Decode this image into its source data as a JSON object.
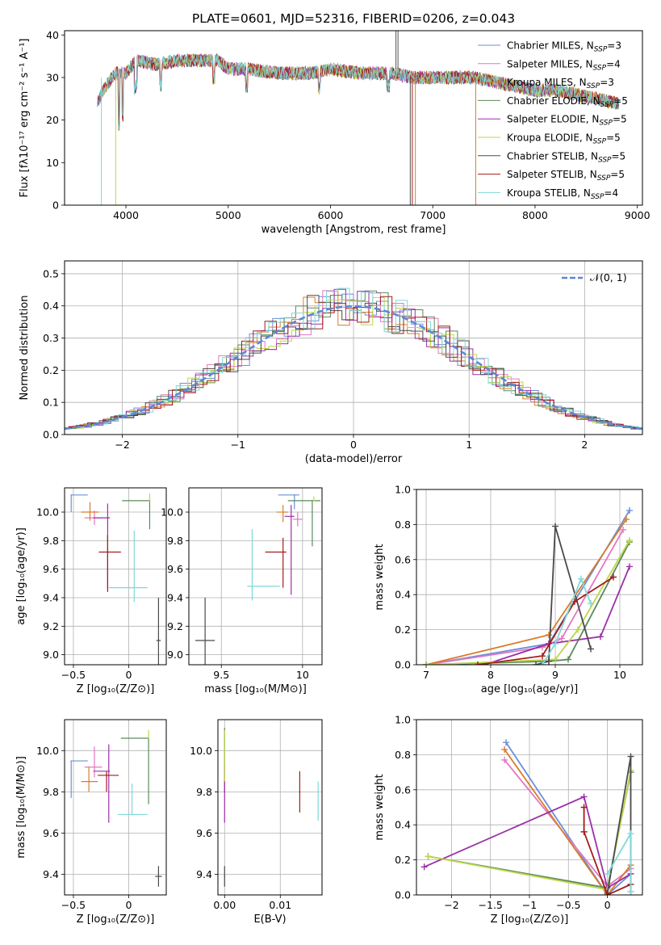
{
  "figure_title": "PLATE=0601, MJD=52316, FIBERID=0206, z=0.043",
  "colors": [
    "#6b8fd8",
    "#e377c2",
    "#d97c2a",
    "#5a8a5a",
    "#9b30a8",
    "#bcd64a",
    "#4a4a4a",
    "#a51a1a",
    "#7fd8d8"
  ],
  "panels_text": {
    "spectrum": {
      "xlabel": "wavelength [Angstrom, rest frame]",
      "ylabel": "Flux [fλ10⁻¹⁷ erg cm⁻² s⁻¹ A⁻¹]"
    },
    "hist": {
      "xlabel": "(data-model)/error",
      "ylabel": "Normed distribution",
      "legend": "𝒩(0, 1)"
    },
    "age_z": {
      "xlabel": "Z [log₁₀(Z/Z⊙)]",
      "ylabel": "age  [log₁₀(age/yr)]"
    },
    "age_mass": {
      "xlabel": "mass [log₁₀(M/M⊙)]"
    },
    "mw_age": {
      "xlabel": "age  [log₁₀(age/yr)]",
      "ylabel": "mass weight"
    },
    "mass_z": {
      "xlabel": "Z [log₁₀(Z/Z⊙)]",
      "ylabel": "mass [log₁₀(M/M⊙)]"
    },
    "mass_ebv": {
      "xlabel": "E(B-V)"
    },
    "mw_z": {
      "xlabel": "Z [log₁₀(Z/Z⊙)]",
      "ylabel": "mass weight"
    }
  },
  "chart_data": [
    {
      "id": "spectrum",
      "type": "line",
      "xlim": [
        3400,
        9050
      ],
      "ylim": [
        0,
        41
      ],
      "xticks": [
        4000,
        5000,
        6000,
        7000,
        8000,
        9000
      ],
      "yticks": [
        0,
        10,
        20,
        30,
        40
      ],
      "grid": false,
      "legend_placement": "top-right",
      "series": [
        {
          "name": "Chabrier MILES, N_SSP=3"
        },
        {
          "name": "Salpeter MILES, N_SSP=4"
        },
        {
          "name": "Kroupa MILES, N_SSP=3"
        },
        {
          "name": "Chabrier ELODIE, N_SSP=5"
        },
        {
          "name": "Salpeter ELODIE, N_SSP=5"
        },
        {
          "name": "Kroupa ELODIE, N_SSP=5"
        },
        {
          "name": "Chabrier STELIB, N_SSP=5"
        },
        {
          "name": "Salpeter STELIB, N_SSP=5"
        },
        {
          "name": "Kroupa STELIB, N_SSP=4"
        }
      ],
      "continuum": {
        "x": [
          3720,
          3800,
          3900,
          4000,
          4100,
          4300,
          4500,
          4700,
          4900,
          5000,
          5200,
          5500,
          5800,
          6000,
          6300,
          6600,
          6800,
          7000,
          7200,
          7400,
          7600,
          7800,
          8000,
          8200,
          8400,
          8600,
          8800
        ],
        "y": [
          24,
          28,
          31,
          31,
          34,
          33,
          34,
          34,
          34,
          32,
          32,
          31,
          31,
          32,
          31,
          31,
          30,
          30,
          30,
          30,
          29,
          28,
          27,
          27,
          26,
          25,
          24
        ]
      }
    },
    {
      "id": "hist",
      "type": "bar",
      "xlim": [
        -2.5,
        2.5
      ],
      "ylim": [
        0,
        0.54
      ],
      "xticks": [
        -2,
        -1,
        0,
        1,
        2
      ],
      "yticks": [
        0,
        0.1,
        0.2,
        0.3,
        0.4,
        0.5
      ],
      "grid": true,
      "legend_placement": "top-right",
      "bin_width": 0.1,
      "gaussian": {
        "mean": 0,
        "sigma": 1
      }
    },
    {
      "id": "age_z",
      "type": "scatter",
      "xlim": [
        -0.58,
        0.34
      ],
      "ylim": [
        8.93,
        10.17
      ],
      "xticks": [
        -0.5,
        0.0
      ],
      "yticks": [
        9.0,
        9.2,
        9.4,
        9.6,
        9.8,
        10.0
      ],
      "grid": true,
      "points": [
        {
          "x": -0.52,
          "y": 10.12,
          "xerr": [
            0,
            0.15
          ],
          "yerr": [
            0.12,
            0
          ]
        },
        {
          "x": -0.31,
          "y": 9.96,
          "xerr": [
            0.09,
            0.08
          ],
          "yerr": [
            0.05,
            0.05
          ]
        },
        {
          "x": -0.35,
          "y": 10.0,
          "xerr": [
            0.08,
            0.08
          ],
          "yerr": [
            0.06,
            0.07
          ]
        },
        {
          "x": 0.19,
          "y": 10.08,
          "xerr": [
            0.25,
            0
          ],
          "yerr": [
            0.2,
            0
          ]
        },
        {
          "x": -0.19,
          "y": 9.96,
          "xerr": [
            0.13,
            0.02
          ],
          "yerr": [
            0.5,
            0.1
          ]
        },
        {
          "x": 0.19,
          "y": 10.08,
          "xerr": [
            0,
            0
          ],
          "yerr": [
            0,
            0.05
          ]
        },
        {
          "x": 0.27,
          "y": 9.1,
          "xerr": [
            0.02,
            0.02
          ],
          "yerr": [
            0.17,
            0.3
          ]
        },
        {
          "x": -0.19,
          "y": 9.72,
          "xerr": [
            0.08,
            0.12
          ],
          "yerr": [
            0.28,
            0.12
          ]
        },
        {
          "x": 0.05,
          "y": 9.47,
          "xerr": [
            0.23,
            0.12
          ],
          "yerr": [
            0.1,
            0.4
          ]
        }
      ]
    },
    {
      "id": "age_mass",
      "type": "scatter",
      "xlim": [
        9.3,
        10.12
      ],
      "ylim": [
        8.93,
        10.17
      ],
      "xticks": [
        9.5,
        10.0
      ],
      "yticks": [
        9.0,
        9.2,
        9.4,
        9.6,
        9.8,
        10.0
      ],
      "grid": true,
      "points": [
        {
          "x": 9.95,
          "y": 10.12,
          "xerr": [
            0.1,
            0.03
          ],
          "yerr": [
            0.1,
            0
          ]
        },
        {
          "x": 9.97,
          "y": 9.95,
          "xerr": [
            0.03,
            0.03
          ],
          "yerr": [
            0.05,
            0.05
          ]
        },
        {
          "x": 9.88,
          "y": 10.0,
          "xerr": [
            0.04,
            0.03
          ],
          "yerr": [
            0.07,
            0.05
          ]
        },
        {
          "x": 10.06,
          "y": 10.08,
          "xerr": [
            0.15,
            0.05
          ],
          "yerr": [
            0.32,
            0
          ]
        },
        {
          "x": 9.93,
          "y": 9.97,
          "xerr": [
            0.04,
            0.02
          ],
          "yerr": [
            0.55,
            0.08
          ]
        },
        {
          "x": 10.07,
          "y": 10.08,
          "xerr": [
            0,
            0
          ],
          "yerr": [
            0,
            0.03
          ]
        },
        {
          "x": 9.4,
          "y": 9.1,
          "xerr": [
            0.06,
            0.06
          ],
          "yerr": [
            0.17,
            0.3
          ]
        },
        {
          "x": 9.88,
          "y": 9.72,
          "xerr": [
            0.11,
            0.02
          ],
          "yerr": [
            0.25,
            0.1
          ]
        },
        {
          "x": 9.69,
          "y": 9.48,
          "xerr": [
            0.03,
            0.17
          ],
          "yerr": [
            0.1,
            0.4
          ]
        }
      ]
    },
    {
      "id": "mw_age",
      "type": "line",
      "xlim": [
        6.85,
        10.35
      ],
      "ylim": [
        0,
        1.0
      ],
      "xticks": [
        7,
        8,
        9,
        10
      ],
      "yticks": [
        0,
        0.2,
        0.4,
        0.6,
        0.8,
        1.0
      ],
      "grid": true,
      "series": [
        {
          "x": [
            7.0,
            8.9,
            10.15
          ],
          "y": [
            0.0,
            0.12,
            0.88
          ]
        },
        {
          "x": [
            7.0,
            8.8,
            9.1,
            10.05
          ],
          "y": [
            0.0,
            0.1,
            0.15,
            0.77
          ]
        },
        {
          "x": [
            7.0,
            8.9,
            10.1
          ],
          "y": [
            0.0,
            0.17,
            0.83
          ]
        },
        {
          "x": [
            7.0,
            8.9,
            9.2,
            10.15
          ],
          "y": [
            0.0,
            0.02,
            0.03,
            0.7
          ]
        },
        {
          "x": [
            7.9,
            8.9,
            9.7,
            10.15
          ],
          "y": [
            0.0,
            0.12,
            0.16,
            0.56
          ]
        },
        {
          "x": [
            7.0,
            9.0,
            9.35,
            10.15
          ],
          "y": [
            0.0,
            0.03,
            0.2,
            0.71
          ]
        },
        {
          "x": [
            8.7,
            8.9,
            9.0,
            9.55
          ],
          "y": [
            0.0,
            0.02,
            0.79,
            0.09
          ]
        },
        {
          "x": [
            7.8,
            8.8,
            9.3,
            9.9
          ],
          "y": [
            0.0,
            0.05,
            0.36,
            0.5
          ]
        },
        {
          "x": [
            8.8,
            9.0,
            9.4,
            9.55
          ],
          "y": [
            0.0,
            0.12,
            0.49,
            0.35
          ]
        }
      ]
    },
    {
      "id": "mass_z",
      "type": "scatter",
      "xlim": [
        -0.58,
        0.34
      ],
      "ylim": [
        9.3,
        10.15
      ],
      "xticks": [
        -0.5,
        0.0
      ],
      "yticks": [
        9.4,
        9.6,
        9.8,
        10.0
      ],
      "grid": true,
      "points": [
        {
          "x": -0.52,
          "y": 9.95,
          "xerr": [
            0,
            0.15
          ],
          "yerr": [
            0.18,
            0
          ]
        },
        {
          "x": -0.31,
          "y": 9.92,
          "xerr": [
            0.09,
            0.07
          ],
          "yerr": [
            0.05,
            0.1
          ]
        },
        {
          "x": -0.36,
          "y": 9.85,
          "xerr": [
            0.07,
            0.08
          ],
          "yerr": [
            0.05,
            0.07
          ]
        },
        {
          "x": 0.18,
          "y": 10.06,
          "xerr": [
            0.25,
            0
          ],
          "yerr": [
            0.32,
            0
          ]
        },
        {
          "x": -0.18,
          "y": 9.9,
          "xerr": [
            0.14,
            0.01
          ],
          "yerr": [
            0.25,
            0.13
          ]
        },
        {
          "x": 0.18,
          "y": 10.06,
          "xerr": [
            0,
            0
          ],
          "yerr": [
            0,
            0.04
          ]
        },
        {
          "x": 0.27,
          "y": 9.39,
          "xerr": [
            0.03,
            0.03
          ],
          "yerr": [
            0.05,
            0.05
          ]
        },
        {
          "x": -0.2,
          "y": 9.88,
          "xerr": [
            0.08,
            0.11
          ],
          "yerr": [
            0.08,
            0.02
          ]
        },
        {
          "x": 0.03,
          "y": 9.69,
          "xerr": [
            0.13,
            0.14
          ],
          "yerr": [
            0,
            0.15
          ]
        }
      ]
    },
    {
      "id": "mass_ebv",
      "type": "scatter",
      "xlim": [
        -0.0012,
        0.0175
      ],
      "ylim": [
        9.3,
        10.15
      ],
      "xticks": [
        0.0,
        0.01
      ],
      "xticklabels": [
        "0.00",
        "0.01"
      ],
      "yticks": [
        9.4,
        9.6,
        9.8,
        10.0
      ],
      "grid": true,
      "points": [
        {
          "x": 0.0,
          "y": 9.95,
          "xerr": [
            0,
            0
          ],
          "yerr": [
            0.15,
            0.15
          ]
        },
        {
          "x": 0.0,
          "y": 9.92,
          "xerr": [
            0,
            0
          ],
          "yerr": [
            0.08,
            0.08
          ]
        },
        {
          "x": 0.0,
          "y": 9.85,
          "xerr": [
            0,
            0
          ],
          "yerr": [
            0.05,
            0.05
          ]
        },
        {
          "x": 0.0,
          "y": 10.06,
          "xerr": [
            0,
            0
          ],
          "yerr": [
            0.15,
            0.05
          ]
        },
        {
          "x": 0.0,
          "y": 9.8,
          "xerr": [
            0,
            0
          ],
          "yerr": [
            0.15,
            0.13
          ]
        },
        {
          "x": 0.0,
          "y": 10.0,
          "xerr": [
            0,
            0
          ],
          "yerr": [
            0.15,
            0.1
          ]
        },
        {
          "x": 0.0,
          "y": 9.39,
          "xerr": [
            0,
            0
          ],
          "yerr": [
            0.05,
            0.05
          ]
        },
        {
          "x": 0.0135,
          "y": 9.8,
          "xerr": [
            0,
            0
          ],
          "yerr": [
            0.1,
            0.1
          ]
        },
        {
          "x": 0.0168,
          "y": 9.75,
          "xerr": [
            0,
            0
          ],
          "yerr": [
            0.09,
            0.1
          ]
        }
      ]
    },
    {
      "id": "mw_z",
      "type": "line",
      "xlim": [
        -2.45,
        0.45
      ],
      "ylim": [
        0,
        1.0
      ],
      "xticks": [
        -2.0,
        -1.5,
        -1.0,
        -0.5,
        0.0
      ],
      "yticks": [
        0,
        0.2,
        0.4,
        0.6,
        0.8,
        1.0
      ],
      "grid": true,
      "series": [
        {
          "x": [
            -1.3,
            0.0,
            0.3
          ],
          "y": [
            0.87,
            0.0,
            0.12
          ]
        },
        {
          "x": -1.32,
          "y": 0.77,
          "pairs": [
            [
              -1.32,
              0.77
            ],
            [
              0.0,
              0.05
            ],
            [
              0.3,
              0.15
            ]
          ]
        },
        {
          "pairs": [
            [
              -1.32,
              0.83
            ],
            [
              0.0,
              0.0
            ],
            [
              0.3,
              0.17
            ]
          ]
        },
        {
          "pairs": [
            [
              -2.3,
              0.22
            ],
            [
              0.0,
              0.04
            ],
            [
              0.3,
              0.7
            ]
          ]
        },
        {
          "pairs": [
            [
              -2.35,
              0.16
            ],
            [
              -0.3,
              0.56
            ],
            [
              0.0,
              0.04
            ],
            [
              0.3,
              0.12
            ]
          ]
        },
        {
          "pairs": [
            [
              -2.3,
              0.22
            ],
            [
              0.0,
              0.03
            ],
            [
              0.3,
              0.71
            ]
          ]
        },
        {
          "pairs": [
            [
              0.0,
              0.01
            ],
            [
              0.3,
              0.79
            ],
            [
              0.3,
              0.02
            ]
          ]
        },
        {
          "pairs": [
            [
              -0.3,
              0.5
            ],
            [
              -0.3,
              0.36
            ],
            [
              0.0,
              0.0
            ],
            [
              0.3,
              0.06
            ]
          ]
        },
        {
          "pairs": [
            [
              0.0,
              0.12
            ],
            [
              0.3,
              0.35
            ],
            [
              0.3,
              0.02
            ]
          ]
        }
      ]
    }
  ]
}
